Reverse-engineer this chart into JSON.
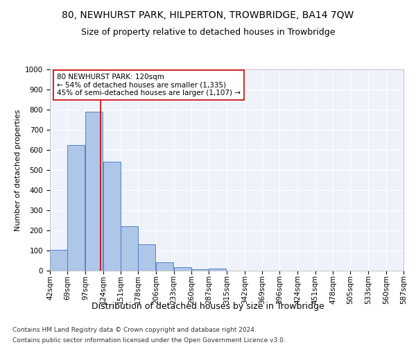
{
  "title": "80, NEWHURST PARK, HILPERTON, TROWBRIDGE, BA14 7QW",
  "subtitle": "Size of property relative to detached houses in Trowbridge",
  "xlabel": "Distribution of detached houses by size in Trowbridge",
  "ylabel": "Number of detached properties",
  "footer_line1": "Contains HM Land Registry data © Crown copyright and database right 2024.",
  "footer_line2": "Contains public sector information licensed under the Open Government Licence v3.0.",
  "annotation_line1": "80 NEWHURST PARK: 120sqm",
  "annotation_line2": "← 54% of detached houses are smaller (1,335)",
  "annotation_line3": "45% of semi-detached houses are larger (1,107) →",
  "bar_color": "#aec6e8",
  "bar_edge_color": "#4472c4",
  "vline_color": "#cc0000",
  "annotation_box_edge_color": "#cc0000",
  "background_color": "#eef2fa",
  "grid_color": "#ffffff",
  "bins": [
    42,
    69,
    97,
    124,
    151,
    178,
    206,
    233,
    260,
    287,
    315,
    342,
    369,
    396,
    424,
    451,
    478,
    505,
    533,
    560,
    587
  ],
  "values": [
    102,
    625,
    790,
    542,
    221,
    131,
    42,
    16,
    8,
    11,
    0,
    0,
    0,
    0,
    0,
    0,
    0,
    0,
    0,
    0
  ],
  "vline_x": 120,
  "ylim": [
    0,
    1000
  ],
  "yticks": [
    0,
    100,
    200,
    300,
    400,
    500,
    600,
    700,
    800,
    900,
    1000
  ],
  "title_fontsize": 10,
  "subtitle_fontsize": 9,
  "xlabel_fontsize": 9,
  "ylabel_fontsize": 8,
  "tick_fontsize": 7.5,
  "annotation_fontsize": 7.5,
  "footer_fontsize": 6.5
}
